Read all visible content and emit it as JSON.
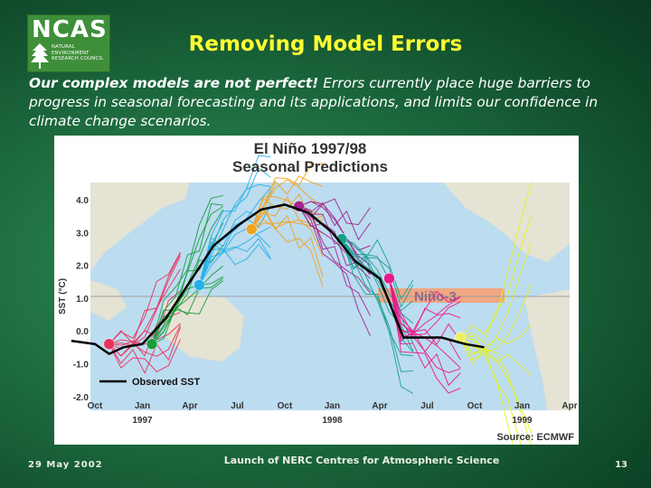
{
  "logo": {
    "word": "NCAS",
    "lines": [
      "NATURAL",
      "ENVIRONMENT",
      "RESEARCH COUNCIL"
    ]
  },
  "slide": {
    "title": "Removing Model Errors",
    "intro_bold": "Our complex models are not perfect!",
    "intro_rest": " Errors currently place huge barriers to progress in seasonal forecasting and its applications, and limits our confidence in climate change scenarios."
  },
  "footer": {
    "date": "29 May 2002",
    "center": "Launch of NERC Centres for Atmospheric Science",
    "page": "13"
  },
  "chart_data": {
    "type": "line",
    "title": "El Niño 1997/98",
    "subtitle": "Seasonal Predictions",
    "ylabel": "SST (°C)",
    "ylim": [
      -2.0,
      4.0
    ],
    "yticks": [
      "4.0",
      "3.0",
      "2.0",
      "1.0",
      "0.0",
      "-1.0",
      "-2.0"
    ],
    "xticks": [
      "Oct",
      "Jan",
      "Apr",
      "Jul",
      "Oct",
      "Jan",
      "Apr",
      "Jul",
      "Oct",
      "Jan",
      "Apr"
    ],
    "year_labels": [
      {
        "label": "1997",
        "tick": 1
      },
      {
        "label": "1998",
        "tick": 5
      },
      {
        "label": "1999",
        "tick": 9
      }
    ],
    "region_label": "Niño-3",
    "source": "Source: ECMWF",
    "legend": "Observed SST",
    "observed": {
      "name": "Observed SST",
      "color": "#000000",
      "x": [
        -0.5,
        0,
        0.3,
        0.6,
        1,
        1.5,
        2,
        2.5,
        3,
        3.5,
        4,
        4.5,
        5,
        5.5,
        6,
        6.5,
        7,
        7.3,
        7.8,
        8.2
      ],
      "y": [
        -0.3,
        -0.4,
        -0.7,
        -0.5,
        -0.4,
        0.4,
        1.5,
        2.6,
        3.2,
        3.7,
        3.85,
        3.6,
        3.0,
        2.1,
        1.6,
        -0.2,
        -0.2,
        -0.2,
        -0.4,
        -0.5
      ]
    },
    "ensembles": [
      {
        "color": "#e8315c",
        "start_x": 0.3,
        "start_y": -0.4,
        "dot": "#e8315c"
      },
      {
        "color": "#1a9b3c",
        "start_x": 1.2,
        "start_y": -0.4,
        "dot": "#1a9b3c"
      },
      {
        "color": "#24b0e8",
        "start_x": 2.2,
        "start_y": 1.4,
        "dot": "#24b0e8"
      },
      {
        "color": "#f3a21b",
        "start_x": 3.3,
        "start_y": 3.1,
        "dot": "#f3a21b"
      },
      {
        "color": "#a0258e",
        "start_x": 4.3,
        "start_y": 3.8,
        "dot": "#a0258e"
      },
      {
        "color": "#14a08e",
        "start_x": 5.2,
        "start_y": 2.8,
        "dot": "#14a08e"
      },
      {
        "color": "#e8198c",
        "start_x": 6.2,
        "start_y": 1.6,
        "dot": "#e8198c"
      },
      {
        "color": "#e6f21a",
        "start_x": 7.7,
        "start_y": -0.2,
        "dot": "#eeee66"
      }
    ]
  }
}
